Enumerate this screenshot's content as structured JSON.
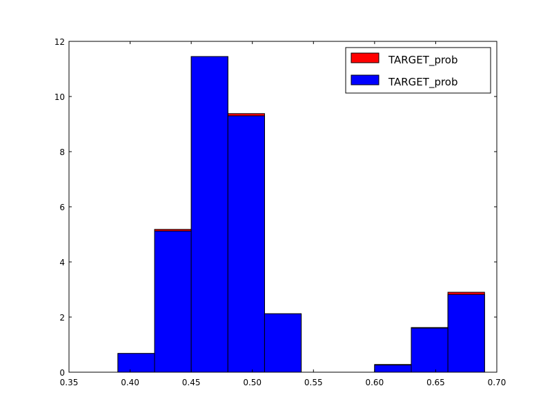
{
  "chart_data": {
    "type": "bar",
    "title": "",
    "xlabel": "",
    "ylabel": "",
    "xlim": [
      0.35,
      0.7
    ],
    "ylim": [
      0,
      12
    ],
    "xticks": [
      "0.35",
      "0.40",
      "0.45",
      "0.50",
      "0.55",
      "0.60",
      "0.65",
      "0.70"
    ],
    "yticks": [
      "0",
      "2",
      "4",
      "6",
      "8",
      "10",
      "12"
    ],
    "grid": false,
    "legend_position": "top-right",
    "series": [
      {
        "name": "TARGET_prob",
        "color": "#ff0000",
        "bins": [
          {
            "x0": 0.39,
            "x1": 0.42,
            "value": 0.68
          },
          {
            "x0": 0.42,
            "x1": 0.45,
            "value": 5.18
          },
          {
            "x0": 0.45,
            "x1": 0.48,
            "value": 11.45
          },
          {
            "x0": 0.48,
            "x1": 0.51,
            "value": 9.38
          },
          {
            "x0": 0.51,
            "x1": 0.54,
            "value": 2.12
          },
          {
            "x0": 0.54,
            "x1": 0.57,
            "value": 0
          },
          {
            "x0": 0.57,
            "x1": 0.6,
            "value": 0
          },
          {
            "x0": 0.6,
            "x1": 0.63,
            "value": 0.28
          },
          {
            "x0": 0.63,
            "x1": 0.66,
            "value": 1.62
          },
          {
            "x0": 0.66,
            "x1": 0.69,
            "value": 2.9
          }
        ]
      },
      {
        "name": "TARGET_prob",
        "color": "#0000ff",
        "bins": [
          {
            "x0": 0.39,
            "x1": 0.42,
            "value": 0.68
          },
          {
            "x0": 0.42,
            "x1": 0.45,
            "value": 5.12
          },
          {
            "x0": 0.45,
            "x1": 0.48,
            "value": 11.45
          },
          {
            "x0": 0.48,
            "x1": 0.51,
            "value": 9.3
          },
          {
            "x0": 0.51,
            "x1": 0.54,
            "value": 2.12
          },
          {
            "x0": 0.54,
            "x1": 0.57,
            "value": 0
          },
          {
            "x0": 0.57,
            "x1": 0.6,
            "value": 0
          },
          {
            "x0": 0.6,
            "x1": 0.63,
            "value": 0.26
          },
          {
            "x0": 0.63,
            "x1": 0.66,
            "value": 1.6
          },
          {
            "x0": 0.66,
            "x1": 0.69,
            "value": 2.82
          }
        ]
      }
    ]
  }
}
